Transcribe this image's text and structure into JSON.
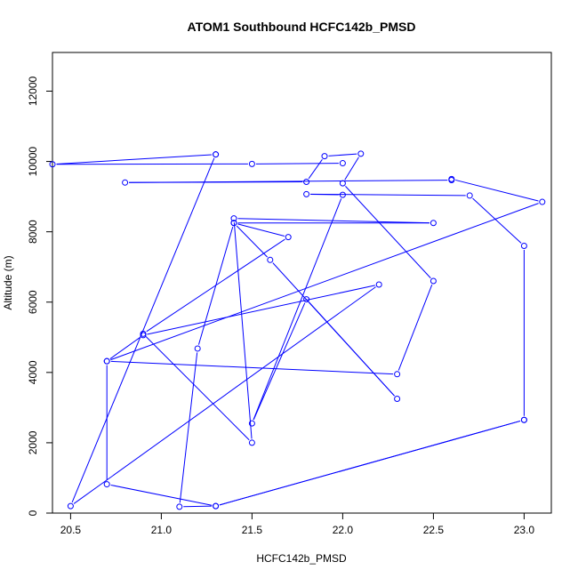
{
  "chart_data": {
    "type": "line",
    "title": "ATOM1 Southbound HCFC142b_PMSD",
    "xlabel": "HCFC142b_PMSD",
    "ylabel": "Altitude (m)",
    "xlim": [
      20.4,
      23.15
    ],
    "ylim": [
      0,
      13100
    ],
    "xticks": [
      20.5,
      21.0,
      21.5,
      22.0,
      22.5,
      23.0
    ],
    "xtick_labels": [
      "20.5",
      "21.0",
      "21.5",
      "22.0",
      "22.5",
      "23.0"
    ],
    "yticks": [
      0,
      2000,
      4000,
      6000,
      8000,
      10000,
      12000
    ],
    "ytick_labels": [
      "0",
      "2000",
      "4000",
      "6000",
      "8000",
      "10000",
      "12000"
    ],
    "grid": false,
    "series": [
      {
        "color": "#0000ff",
        "marker": "open-circle",
        "x": [
          23.0,
          21.3,
          21.1,
          21.2,
          21.4,
          21.7,
          20.9,
          21.5,
          21.4,
          22.5,
          21.4,
          21.6,
          22.3,
          21.8,
          21.5,
          22.0,
          21.8,
          22.7,
          23.0,
          23.0,
          21.3,
          20.7,
          20.7,
          22.3,
          22.5,
          22.0,
          22.1,
          21.9,
          21.8,
          20.8,
          22.6,
          22.6,
          23.1,
          20.7,
          20.9,
          22.2,
          20.5,
          21.3,
          21.3,
          20.4,
          21.5,
          22.0
        ],
        "y": [
          2650,
          200,
          180,
          4680,
          8250,
          7850,
          5100,
          2000,
          8380,
          8250,
          8250,
          7200,
          3250,
          6080,
          2550,
          9050,
          9070,
          9030,
          7600,
          2650,
          200,
          820,
          4320,
          3950,
          6600,
          9380,
          10220,
          10150,
          9420,
          9400,
          9470,
          9500,
          8850,
          4320,
          5060,
          6500,
          200,
          10200,
          10200,
          9920,
          9930,
          9950
        ]
      }
    ]
  }
}
